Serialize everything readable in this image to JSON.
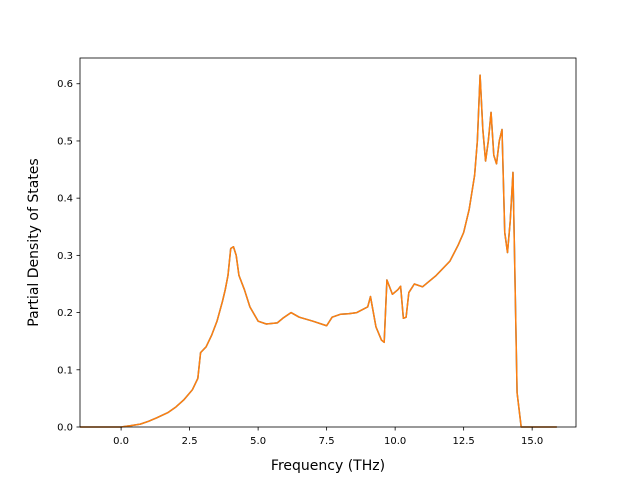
{
  "chart_data": {
    "type": "line",
    "xlabel": "Frequency (THz)",
    "ylabel": "Partial Density of States",
    "xlim": [
      -1.5,
      16.6
    ],
    "ylim": [
      0,
      0.645
    ],
    "x_ticks": [
      {
        "value": 0.0,
        "label": "0.0"
      },
      {
        "value": 2.5,
        "label": "2.5"
      },
      {
        "value": 5.0,
        "label": "5.0"
      },
      {
        "value": 7.5,
        "label": "7.5"
      },
      {
        "value": 10.0,
        "label": "10.0"
      },
      {
        "value": 12.5,
        "label": "12.5"
      },
      {
        "value": 15.0,
        "label": "15.0"
      }
    ],
    "y_ticks": [
      {
        "value": 0.0,
        "label": "0.0"
      },
      {
        "value": 0.1,
        "label": "0.1"
      },
      {
        "value": 0.2,
        "label": "0.2"
      },
      {
        "value": 0.3,
        "label": "0.3"
      },
      {
        "value": 0.4,
        "label": "0.4"
      },
      {
        "value": 0.5,
        "label": "0.5"
      },
      {
        "value": 0.6,
        "label": "0.6"
      }
    ],
    "grid": false,
    "series": [
      {
        "color": "#1f77b4",
        "x": [
          -1.5,
          0.0,
          0.3,
          0.7,
          1.0,
          1.3,
          1.7,
          2.0,
          2.3,
          2.6,
          2.8,
          2.9,
          3.1,
          3.3,
          3.5,
          3.7,
          3.8,
          3.9,
          4.0,
          4.1,
          4.2,
          4.3,
          4.5,
          4.7,
          5.0,
          5.3,
          5.7,
          5.9,
          6.2,
          6.5,
          7.0,
          7.5,
          7.7,
          8.0,
          8.3,
          8.6,
          9.0,
          9.1,
          9.3,
          9.5,
          9.6,
          9.7,
          9.9,
          10.1,
          10.2,
          10.3,
          10.4,
          10.5,
          10.7,
          11.0,
          11.5,
          12.0,
          12.3,
          12.5,
          12.7,
          12.8,
          12.9,
          13.0,
          13.1,
          13.2,
          13.3,
          13.4,
          13.5,
          13.6,
          13.7,
          13.8,
          13.9,
          14.0,
          14.1,
          14.2,
          14.3,
          14.35,
          14.45,
          14.6,
          15.0,
          15.9
        ],
        "y": [
          0.0,
          0.0,
          0.002,
          0.005,
          0.01,
          0.016,
          0.025,
          0.035,
          0.048,
          0.065,
          0.085,
          0.13,
          0.14,
          0.16,
          0.185,
          0.22,
          0.24,
          0.265,
          0.312,
          0.315,
          0.3,
          0.265,
          0.24,
          0.21,
          0.185,
          0.18,
          0.182,
          0.19,
          0.2,
          0.192,
          0.185,
          0.177,
          0.192,
          0.197,
          0.198,
          0.2,
          0.21,
          0.228,
          0.175,
          0.152,
          0.148,
          0.257,
          0.232,
          0.24,
          0.246,
          0.19,
          0.192,
          0.235,
          0.25,
          0.245,
          0.265,
          0.29,
          0.318,
          0.34,
          0.38,
          0.41,
          0.44,
          0.5,
          0.615,
          0.52,
          0.465,
          0.5,
          0.55,
          0.475,
          0.46,
          0.5,
          0.52,
          0.34,
          0.305,
          0.36,
          0.445,
          0.32,
          0.06,
          0.0,
          0.0,
          0.0
        ]
      },
      {
        "color": "#ff7f0e",
        "x": [
          -1.5,
          0.0,
          0.3,
          0.7,
          1.0,
          1.3,
          1.7,
          2.0,
          2.3,
          2.6,
          2.8,
          2.9,
          3.1,
          3.3,
          3.5,
          3.7,
          3.8,
          3.9,
          4.0,
          4.1,
          4.2,
          4.3,
          4.5,
          4.7,
          5.0,
          5.3,
          5.7,
          5.9,
          6.2,
          6.5,
          7.0,
          7.5,
          7.7,
          8.0,
          8.3,
          8.6,
          9.0,
          9.1,
          9.3,
          9.5,
          9.6,
          9.7,
          9.9,
          10.1,
          10.2,
          10.3,
          10.4,
          10.5,
          10.7,
          11.0,
          11.5,
          12.0,
          12.3,
          12.5,
          12.7,
          12.8,
          12.9,
          13.0,
          13.1,
          13.2,
          13.3,
          13.4,
          13.5,
          13.6,
          13.7,
          13.8,
          13.9,
          14.0,
          14.1,
          14.2,
          14.3,
          14.35,
          14.45,
          14.6,
          15.0,
          15.9
        ],
        "y": [
          0.0,
          0.0,
          0.002,
          0.005,
          0.01,
          0.016,
          0.025,
          0.035,
          0.048,
          0.065,
          0.085,
          0.13,
          0.14,
          0.16,
          0.185,
          0.22,
          0.24,
          0.265,
          0.312,
          0.315,
          0.3,
          0.265,
          0.24,
          0.21,
          0.185,
          0.18,
          0.182,
          0.19,
          0.2,
          0.192,
          0.185,
          0.177,
          0.192,
          0.197,
          0.198,
          0.2,
          0.21,
          0.228,
          0.175,
          0.152,
          0.148,
          0.257,
          0.232,
          0.24,
          0.246,
          0.19,
          0.192,
          0.235,
          0.25,
          0.245,
          0.265,
          0.29,
          0.318,
          0.34,
          0.38,
          0.41,
          0.44,
          0.5,
          0.615,
          0.52,
          0.465,
          0.5,
          0.55,
          0.475,
          0.46,
          0.5,
          0.52,
          0.34,
          0.305,
          0.36,
          0.445,
          0.32,
          0.06,
          0.0,
          0.0,
          0.0
        ]
      }
    ]
  }
}
